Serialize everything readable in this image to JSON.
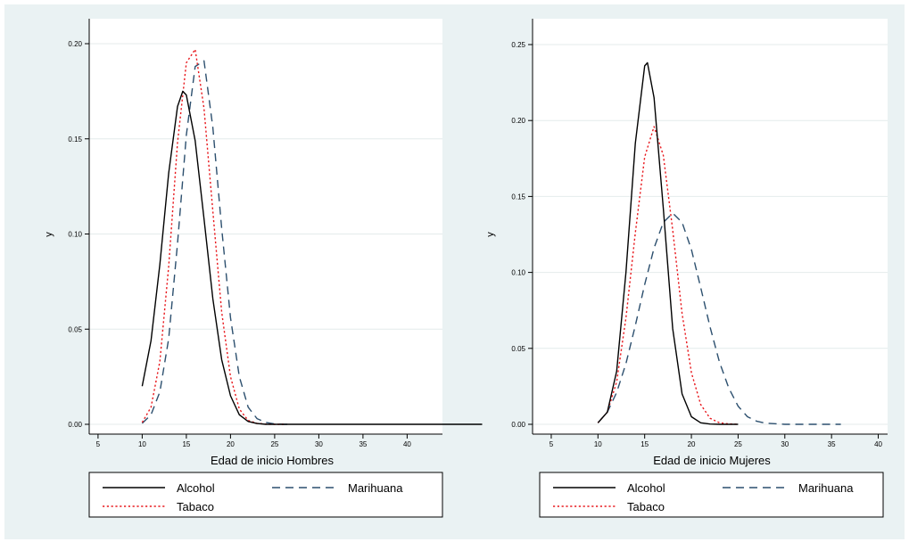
{
  "colors": {
    "outer_background": "#eaf2f3",
    "plot_background": "#ffffff",
    "grid": "#e4ebeb",
    "axis": "#000000",
    "alcohol": "#000000",
    "tabaco": "#e8191e",
    "marihuana": "#2c4f6e"
  },
  "chart_data": [
    {
      "type": "line",
      "title": "",
      "xlabel": "Edad de inicio Hombres",
      "ylabel": "y",
      "xlim": [
        4,
        44
      ],
      "ylim": [
        0,
        0.2
      ],
      "x_ticks": [
        "5",
        "10",
        "15",
        "20",
        "25",
        "30",
        "35",
        "40"
      ],
      "y_ticks": [
        "0.00",
        "0.05",
        "0.10",
        "0.15",
        "0.20"
      ],
      "grid": true,
      "legend": {
        "placement": "bottom",
        "entries": [
          "Alcohol",
          "Marihuana",
          "Tabaco"
        ]
      },
      "series": [
        {
          "name": "Alcohol",
          "line": "solid",
          "x": [
            10,
            11,
            12,
            13,
            14,
            14.6,
            15,
            16,
            17,
            18,
            19,
            20,
            21,
            22,
            23,
            24,
            25,
            30,
            40,
            48.5
          ],
          "y": [
            0.02,
            0.044,
            0.084,
            0.132,
            0.167,
            0.175,
            0.173,
            0.149,
            0.108,
            0.066,
            0.034,
            0.015,
            0.005,
            0.0015,
            0.0004,
            0,
            0,
            0,
            0,
            0
          ]
        },
        {
          "name": "Tabaco",
          "line": "dotted",
          "x": [
            10,
            11,
            12,
            13,
            14,
            15,
            16,
            17,
            18,
            19,
            20,
            21,
            22,
            23,
            24,
            25,
            26
          ],
          "y": [
            0.001,
            0.009,
            0.033,
            0.083,
            0.148,
            0.19,
            0.197,
            0.166,
            0.112,
            0.059,
            0.025,
            0.008,
            0.002,
            0.0005,
            0.0001,
            0,
            0
          ]
        },
        {
          "name": "Marihuana",
          "line": "dashed",
          "x": [
            10,
            11,
            12,
            13,
            14,
            15,
            16,
            17,
            18,
            19,
            20,
            21,
            22,
            23,
            24,
            25,
            26,
            27
          ],
          "y": [
            0.0005,
            0.005,
            0.017,
            0.045,
            0.095,
            0.152,
            0.188,
            0.191,
            0.156,
            0.103,
            0.056,
            0.025,
            0.009,
            0.003,
            0.001,
            0.0002,
            0,
            0
          ]
        }
      ]
    },
    {
      "type": "line",
      "title": "",
      "xlabel": "Edad de inicio Mujeres",
      "ylabel": "y",
      "xlim": [
        3,
        41
      ],
      "ylim": [
        0,
        0.25
      ],
      "x_ticks": [
        "5",
        "10",
        "15",
        "20",
        "25",
        "30",
        "35",
        "40"
      ],
      "y_ticks": [
        "0.00",
        "0.05",
        "0.10",
        "0.15",
        "0.20",
        "0.25"
      ],
      "grid": true,
      "legend": {
        "placement": "bottom",
        "entries": [
          "Alcohol",
          "Marihuana",
          "Tabaco"
        ]
      },
      "series": [
        {
          "name": "Alcohol",
          "line": "solid",
          "x": [
            10,
            11,
            12,
            13,
            14,
            15,
            15.3,
            16,
            17,
            18,
            19,
            20,
            21,
            22,
            23,
            24,
            25
          ],
          "y": [
            0.001,
            0.008,
            0.035,
            0.1,
            0.185,
            0.236,
            0.238,
            0.215,
            0.142,
            0.063,
            0.02,
            0.005,
            0.001,
            0.0002,
            0,
            0,
            0
          ]
        },
        {
          "name": "Tabaco",
          "line": "dotted",
          "x": [
            10,
            11,
            12,
            13,
            14,
            15,
            16,
            17,
            18,
            19,
            20,
            21,
            22,
            23,
            24,
            25
          ],
          "y": [
            0.001,
            0.008,
            0.028,
            0.07,
            0.126,
            0.176,
            0.196,
            0.177,
            0.128,
            0.073,
            0.034,
            0.013,
            0.004,
            0.001,
            0.0003,
            0
          ]
        },
        {
          "name": "Marihuana",
          "line": "dashed",
          "x": [
            10,
            11,
            12,
            13,
            14,
            15,
            16,
            17,
            18,
            19,
            20,
            21,
            22,
            23,
            24,
            25,
            26,
            27,
            28,
            30,
            33,
            36
          ],
          "y": [
            0.001,
            0.008,
            0.021,
            0.04,
            0.065,
            0.092,
            0.116,
            0.133,
            0.139,
            0.133,
            0.115,
            0.09,
            0.064,
            0.041,
            0.024,
            0.012,
            0.005,
            0.002,
            0.0007,
            0,
            0,
            0
          ]
        }
      ]
    }
  ]
}
